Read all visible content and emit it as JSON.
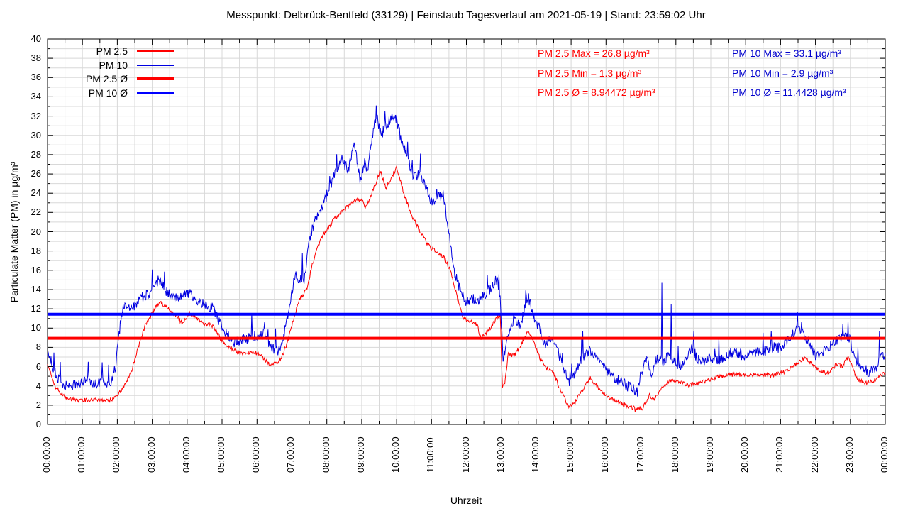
{
  "title": "Messpunkt: Delbrück-Bentfeld (33129) | Feinstaub Tagesverlauf am 2021-05-19 | Stand: 23:59:02 Uhr",
  "axes": {
    "x_label": "Uhrzeit",
    "y_label": "Particulate Matter (PM) in µg/m³",
    "y_min": 0,
    "y_max": 40,
    "y_step": 2,
    "x_tick_labels": [
      "00:00:00",
      "01:00:00",
      "02:00:00",
      "03:00:00",
      "04:00:00",
      "05:00:00",
      "06:00:00",
      "07:00:00",
      "08:00:00",
      "09:00:00",
      "10:00:00",
      "11:00:00",
      "12:00:00",
      "13:00:00",
      "14:00:00",
      "15:00:00",
      "16:00:00",
      "17:00:00",
      "18:00:00",
      "19:00:00",
      "20:00:00",
      "21:00:00",
      "22:00:00",
      "23:00:00",
      "00:00:00"
    ]
  },
  "legend": {
    "items": [
      {
        "label": "PM 2.5",
        "color": "#ff0000",
        "thick": false
      },
      {
        "label": "PM 10",
        "color": "#0000e0",
        "thick": false
      },
      {
        "label": "PM 2.5 Ø",
        "color": "#ff0000",
        "thick": true
      },
      {
        "label": "PM 10 Ø",
        "color": "#0000ff",
        "thick": true
      }
    ]
  },
  "stats": {
    "pm25": [
      "PM 2.5 Max = 26.8 µg/m³",
      "PM 2.5 Min = 1.3 µg/m³",
      "PM 2.5 Ø = 8.94472 µg/m³"
    ],
    "pm10": [
      "PM 10 Max = 33.1 µg/m³",
      "PM 10 Min = 2.9 µg/m³",
      "PM 10 Ø = 11.4428 µg/m³"
    ]
  },
  "colors": {
    "pm25": "#ff0000",
    "pm10": "#0000e0",
    "pm25_mean": "#ff0000",
    "pm10_mean": "#0000ff",
    "stats_red": "#ff0000",
    "stats_blue": "#0000cd",
    "grid": "#d8d8d8",
    "border": "#000000"
  },
  "chart_data": {
    "type": "line",
    "x_unit": "hours",
    "x_range": [
      0,
      24
    ],
    "ylim": [
      0,
      40
    ],
    "grid": true,
    "noise": {
      "pm25": 0.22,
      "pm10": 0.55,
      "pm10_spike_prob": 0.025
    },
    "stats": {
      "pm25": {
        "max": 26.8,
        "min": 1.3,
        "mean": 8.94472
      },
      "pm10": {
        "max": 33.1,
        "min": 2.9,
        "mean": 11.4428
      }
    },
    "series": [
      {
        "name": "PM 2.5",
        "kind": "data",
        "anchors": [
          [
            0.0,
            6.2
          ],
          [
            0.08,
            5.6
          ],
          [
            0.2,
            4.0
          ],
          [
            0.35,
            3.4
          ],
          [
            0.5,
            2.8
          ],
          [
            0.7,
            2.6
          ],
          [
            1.0,
            2.5
          ],
          [
            1.3,
            2.6
          ],
          [
            1.6,
            2.5
          ],
          [
            1.83,
            2.5
          ],
          [
            2.0,
            3.0
          ],
          [
            2.2,
            4.0
          ],
          [
            2.4,
            5.5
          ],
          [
            2.6,
            8.0
          ],
          [
            2.8,
            10.3
          ],
          [
            3.0,
            11.6
          ],
          [
            3.22,
            12.7
          ],
          [
            3.4,
            12.2
          ],
          [
            3.72,
            11.2
          ],
          [
            3.85,
            10.5
          ],
          [
            4.07,
            11.5
          ],
          [
            4.3,
            10.9
          ],
          [
            4.5,
            10.5
          ],
          [
            4.75,
            10.2
          ],
          [
            4.95,
            8.9
          ],
          [
            5.15,
            8.1
          ],
          [
            5.5,
            7.4
          ],
          [
            5.8,
            7.5
          ],
          [
            6.1,
            7.3
          ],
          [
            6.35,
            6.2
          ],
          [
            6.55,
            6.3
          ],
          [
            6.7,
            6.9
          ],
          [
            6.85,
            8.3
          ],
          [
            7.0,
            10.3
          ],
          [
            7.2,
            12.8
          ],
          [
            7.42,
            14.0
          ],
          [
            7.58,
            16.5
          ],
          [
            7.8,
            19.0
          ],
          [
            8.0,
            20.2
          ],
          [
            8.2,
            21.3
          ],
          [
            8.5,
            22.3
          ],
          [
            8.8,
            23.2
          ],
          [
            9.0,
            23.4
          ],
          [
            9.1,
            22.3
          ],
          [
            9.25,
            23.6
          ],
          [
            9.42,
            25.2
          ],
          [
            9.53,
            26.3
          ],
          [
            9.7,
            24.5
          ],
          [
            9.85,
            25.6
          ],
          [
            10.0,
            26.6
          ],
          [
            10.08,
            25.8
          ],
          [
            10.2,
            24.0
          ],
          [
            10.45,
            21.6
          ],
          [
            10.7,
            19.8
          ],
          [
            10.9,
            18.6
          ],
          [
            11.1,
            18.0
          ],
          [
            11.35,
            17.4
          ],
          [
            11.55,
            16.0
          ],
          [
            11.75,
            13.0
          ],
          [
            11.9,
            11.0
          ],
          [
            12.1,
            10.7
          ],
          [
            12.3,
            10.4
          ],
          [
            12.42,
            8.9
          ],
          [
            12.6,
            9.6
          ],
          [
            12.75,
            10.4
          ],
          [
            12.9,
            11.2
          ],
          [
            12.97,
            11.4
          ],
          [
            13.03,
            4.0
          ],
          [
            13.1,
            4.4
          ],
          [
            13.2,
            7.3
          ],
          [
            13.35,
            7.1
          ],
          [
            13.5,
            7.8
          ],
          [
            13.75,
            9.6
          ],
          [
            13.9,
            8.9
          ],
          [
            14.1,
            6.9
          ],
          [
            14.3,
            5.9
          ],
          [
            14.5,
            5.3
          ],
          [
            14.75,
            3.1
          ],
          [
            14.92,
            1.9
          ],
          [
            15.1,
            2.3
          ],
          [
            15.35,
            3.7
          ],
          [
            15.55,
            4.8
          ],
          [
            15.75,
            3.9
          ],
          [
            16.1,
            2.7
          ],
          [
            16.4,
            2.2
          ],
          [
            16.8,
            1.7
          ],
          [
            17.05,
            1.7
          ],
          [
            17.25,
            3.1
          ],
          [
            17.37,
            2.5
          ],
          [
            17.58,
            3.6
          ],
          [
            17.75,
            4.4
          ],
          [
            18.0,
            4.6
          ],
          [
            18.3,
            4.1
          ],
          [
            18.6,
            4.2
          ],
          [
            18.85,
            4.5
          ],
          [
            19.3,
            5.0
          ],
          [
            19.7,
            5.2
          ],
          [
            20.2,
            5.1
          ],
          [
            20.8,
            5.1
          ],
          [
            21.2,
            5.6
          ],
          [
            21.55,
            6.5
          ],
          [
            21.68,
            6.9
          ],
          [
            21.9,
            6.3
          ],
          [
            22.1,
            5.6
          ],
          [
            22.4,
            5.3
          ],
          [
            22.6,
            6.3
          ],
          [
            22.77,
            6.0
          ],
          [
            22.95,
            7.1
          ],
          [
            23.1,
            5.4
          ],
          [
            23.2,
            4.7
          ],
          [
            23.4,
            4.3
          ],
          [
            23.6,
            4.4
          ],
          [
            23.8,
            4.9
          ],
          [
            24.0,
            5.3
          ]
        ],
        "spikes": [
          [
            10.0,
            26.8
          ],
          [
            16.83,
            1.3
          ]
        ]
      },
      {
        "name": "PM 10",
        "kind": "data",
        "anchors": [
          [
            0.0,
            7.6
          ],
          [
            0.1,
            6.6
          ],
          [
            0.25,
            5.0
          ],
          [
            0.4,
            4.3
          ],
          [
            0.6,
            4.0
          ],
          [
            0.8,
            4.1
          ],
          [
            1.0,
            4.4
          ],
          [
            1.2,
            4.6
          ],
          [
            1.35,
            4.2
          ],
          [
            1.55,
            4.4
          ],
          [
            1.72,
            4.1
          ],
          [
            1.83,
            4.6
          ],
          [
            1.95,
            6.0
          ],
          [
            2.05,
            9.5
          ],
          [
            2.15,
            11.9
          ],
          [
            2.3,
            12.4
          ],
          [
            2.45,
            12.0
          ],
          [
            2.6,
            12.9
          ],
          [
            2.75,
            13.3
          ],
          [
            2.9,
            13.6
          ],
          [
            3.05,
            14.3
          ],
          [
            3.2,
            15.1
          ],
          [
            3.35,
            14.0
          ],
          [
            3.55,
            13.4
          ],
          [
            3.75,
            13.1
          ],
          [
            3.9,
            13.3
          ],
          [
            4.07,
            13.8
          ],
          [
            4.25,
            13.0
          ],
          [
            4.5,
            12.4
          ],
          [
            4.72,
            12.1
          ],
          [
            4.85,
            11.2
          ],
          [
            5.0,
            10.2
          ],
          [
            5.1,
            9.5
          ],
          [
            5.35,
            8.5
          ],
          [
            5.6,
            8.8
          ],
          [
            5.85,
            9.0
          ],
          [
            6.0,
            8.7
          ],
          [
            6.2,
            9.6
          ],
          [
            6.4,
            7.9
          ],
          [
            6.6,
            7.7
          ],
          [
            6.72,
            8.6
          ],
          [
            6.85,
            10.8
          ],
          [
            7.0,
            13.8
          ],
          [
            7.08,
            15.4
          ],
          [
            7.2,
            15.2
          ],
          [
            7.35,
            14.9
          ],
          [
            7.5,
            19.2
          ],
          [
            7.67,
            21.3
          ],
          [
            7.88,
            22.6
          ],
          [
            8.1,
            24.8
          ],
          [
            8.3,
            26.6
          ],
          [
            8.42,
            27.6
          ],
          [
            8.6,
            26.2
          ],
          [
            8.8,
            29.2
          ],
          [
            8.95,
            25.2
          ],
          [
            9.08,
            27.2
          ],
          [
            9.17,
            26.4
          ],
          [
            9.3,
            29.6
          ],
          [
            9.42,
            32.2
          ],
          [
            9.5,
            30.8
          ],
          [
            9.6,
            30.3
          ],
          [
            9.75,
            31.3
          ],
          [
            9.88,
            31.8
          ],
          [
            10.0,
            31.6
          ],
          [
            10.15,
            29.2
          ],
          [
            10.35,
            27.2
          ],
          [
            10.5,
            25.6
          ],
          [
            10.68,
            26.0
          ],
          [
            10.85,
            24.6
          ],
          [
            11.0,
            23.0
          ],
          [
            11.2,
            23.6
          ],
          [
            11.35,
            23.8
          ],
          [
            11.5,
            19.6
          ],
          [
            11.65,
            16.0
          ],
          [
            11.85,
            13.6
          ],
          [
            12.0,
            12.6
          ],
          [
            12.15,
            13.1
          ],
          [
            12.35,
            12.9
          ],
          [
            12.55,
            13.6
          ],
          [
            12.7,
            14.1
          ],
          [
            12.88,
            15.0
          ],
          [
            12.97,
            13.0
          ],
          [
            13.05,
            6.6
          ],
          [
            13.15,
            8.7
          ],
          [
            13.3,
            10.6
          ],
          [
            13.4,
            11.0
          ],
          [
            13.55,
            10.1
          ],
          [
            13.7,
            12.9
          ],
          [
            13.83,
            12.8
          ],
          [
            13.95,
            10.9
          ],
          [
            14.1,
            10.0
          ],
          [
            14.25,
            8.1
          ],
          [
            14.42,
            8.9
          ],
          [
            14.6,
            7.9
          ],
          [
            14.78,
            5.8
          ],
          [
            14.95,
            4.4
          ],
          [
            15.1,
            5.1
          ],
          [
            15.3,
            6.9
          ],
          [
            15.55,
            7.7
          ],
          [
            15.75,
            6.6
          ],
          [
            15.95,
            5.9
          ],
          [
            16.2,
            4.9
          ],
          [
            16.45,
            4.4
          ],
          [
            16.65,
            3.9
          ],
          [
            16.85,
            3.5
          ],
          [
            17.0,
            5.1
          ],
          [
            17.15,
            6.7
          ],
          [
            17.3,
            5.4
          ],
          [
            17.45,
            6.9
          ],
          [
            17.65,
            6.4
          ],
          [
            17.8,
            7.4
          ],
          [
            17.95,
            6.5
          ],
          [
            18.15,
            6.1
          ],
          [
            18.45,
            7.9
          ],
          [
            18.7,
            6.4
          ],
          [
            19.0,
            7.0
          ],
          [
            19.2,
            6.6
          ],
          [
            19.5,
            7.3
          ],
          [
            19.75,
            7.5
          ],
          [
            20.0,
            7.0
          ],
          [
            20.3,
            7.4
          ],
          [
            20.55,
            7.6
          ],
          [
            20.8,
            8.0
          ],
          [
            21.0,
            7.9
          ],
          [
            21.2,
            8.8
          ],
          [
            21.5,
            9.9
          ],
          [
            21.65,
            9.4
          ],
          [
            21.8,
            8.6
          ],
          [
            22.0,
            7.1
          ],
          [
            22.3,
            7.7
          ],
          [
            22.55,
            8.7
          ],
          [
            22.8,
            9.2
          ],
          [
            23.0,
            8.7
          ],
          [
            23.15,
            6.6
          ],
          [
            23.35,
            5.8
          ],
          [
            23.55,
            5.4
          ],
          [
            23.7,
            5.7
          ],
          [
            23.9,
            7.0
          ],
          [
            24.0,
            6.8
          ]
        ],
        "spikes": [
          [
            1.17,
            6.5
          ],
          [
            1.75,
            6.2
          ],
          [
            5.85,
            11.5
          ],
          [
            6.22,
            10.6
          ],
          [
            9.42,
            33.1
          ],
          [
            10.68,
            28.1
          ],
          [
            12.84,
            15.4
          ],
          [
            12.93,
            15.6
          ],
          [
            13.7,
            13.9
          ],
          [
            13.79,
            13.6
          ],
          [
            15.02,
            6.3
          ],
          [
            16.9,
            2.9
          ],
          [
            17.6,
            14.7
          ],
          [
            17.87,
            12.5
          ],
          [
            18.52,
            9.7
          ],
          [
            20.73,
            9.7
          ],
          [
            21.47,
            10.3
          ],
          [
            21.6,
            10.6
          ],
          [
            22.78,
            10.4
          ],
          [
            23.83,
            9.7
          ]
        ]
      },
      {
        "name": "PM 2.5 Ø",
        "kind": "mean",
        "value": 8.94472
      },
      {
        "name": "PM 10 Ø",
        "kind": "mean",
        "value": 11.4428
      }
    ]
  }
}
